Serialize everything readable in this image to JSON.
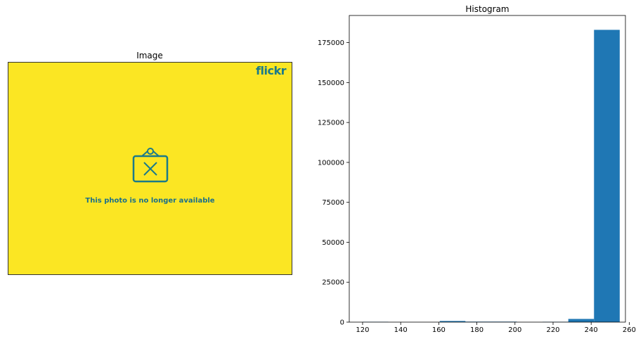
{
  "left_panel": {
    "title": "Image",
    "image": {
      "logo_text": "flickr",
      "message": "This photo is no longer available",
      "background_color": "#fbe623",
      "accent_color": "#1b7a8a"
    }
  },
  "chart_data": {
    "type": "bar",
    "title": "Histogram",
    "xlabel": "",
    "ylabel": "",
    "bar_color": "#1f77b4",
    "xlim": [
      113,
      258
    ],
    "ylim": [
      0,
      192000
    ],
    "xticks": [
      120,
      140,
      160,
      180,
      200,
      220,
      240,
      260
    ],
    "yticks": [
      0,
      25000,
      50000,
      75000,
      100000,
      125000,
      150000,
      175000
    ],
    "bin_edges": [
      120,
      133.5,
      147,
      160.5,
      174,
      187.5,
      201,
      214.5,
      228,
      241.5,
      255
    ],
    "counts": [
      200,
      0,
      0,
      700,
      300,
      300,
      0,
      200,
      2000,
      183000
    ]
  }
}
